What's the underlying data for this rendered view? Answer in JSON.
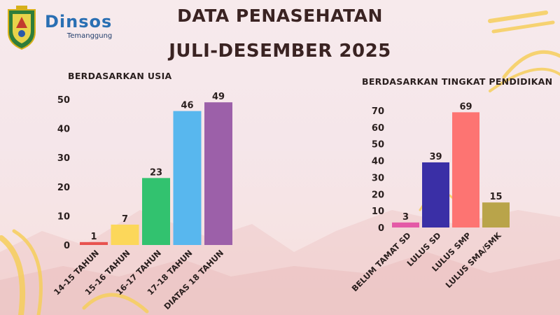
{
  "header": {
    "brand_name": "Dinsos",
    "brand_sub": "Temanggung",
    "title_line1": "DATA PENASEHATAN",
    "title_line2": "JULI-DESEMBER 2025"
  },
  "chart_data": [
    {
      "type": "bar",
      "title": "BERDASARKAN USIA",
      "categories": [
        "14-15 TAHUN",
        "15-16 TAHUN",
        "16-17 TAHUN",
        "17-18 TAHUN",
        "DIATAS 18 TAHUN"
      ],
      "values": [
        1,
        7,
        23,
        46,
        49
      ],
      "colors": [
        "#e8534f",
        "#fcd75a",
        "#32c26f",
        "#58b7ee",
        "#9c60a9"
      ],
      "ylim": [
        0,
        50
      ],
      "yticks": [
        0,
        10,
        20,
        30,
        40,
        50
      ],
      "xlabel": "",
      "ylabel": "",
      "grid": false,
      "data_labels": true
    },
    {
      "type": "bar",
      "title": "BERDASARKAN TINGKAT PENDIDIKAN",
      "categories": [
        "BELUM TAMAT SD",
        "LULUS SD",
        "LULUS SMP",
        "LULUS SMA/SMK"
      ],
      "values": [
        3,
        39,
        69,
        15
      ],
      "colors": [
        "#e45aa7",
        "#3a2fa6",
        "#fd7472",
        "#b9a44a"
      ],
      "ylim": [
        0,
        70
      ],
      "yticks": [
        0,
        10,
        20,
        30,
        40,
        50,
        60,
        70
      ],
      "xlabel": "",
      "ylabel": "",
      "grid": false,
      "data_labels": true
    }
  ],
  "colors": {
    "title": "#3a2322",
    "brand": "#2a6fb3",
    "deco_yellow": "#f6cf5c",
    "mountain": "#ecc4c4"
  },
  "icons": {
    "logo": "temanggung-emblem-icon"
  }
}
